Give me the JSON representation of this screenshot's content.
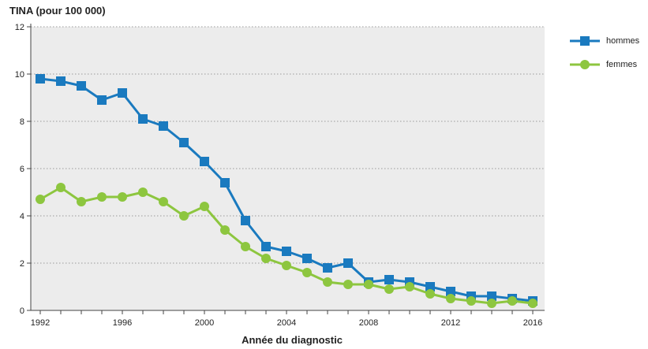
{
  "chart_data": {
    "type": "line",
    "ylabel": "TINA (pour 100 000)",
    "xlabel": "Année du diagnostic",
    "x": [
      1992,
      1993,
      1994,
      1995,
      1996,
      1997,
      1998,
      1999,
      2000,
      2001,
      2002,
      2003,
      2004,
      2005,
      2006,
      2007,
      2008,
      2009,
      2010,
      2011,
      2012,
      2013,
      2014,
      2015,
      2016
    ],
    "series": [
      {
        "name": "hommes",
        "color": "#1a7abf",
        "marker": "square",
        "values": [
          9.8,
          9.7,
          9.5,
          8.9,
          9.2,
          8.1,
          7.8,
          7.1,
          6.3,
          5.4,
          3.8,
          2.7,
          2.5,
          2.2,
          1.8,
          2.0,
          1.2,
          1.3,
          1.2,
          1.0,
          0.8,
          0.6,
          0.6,
          0.5,
          0.4
        ]
      },
      {
        "name": "femmes",
        "color": "#8dc63f",
        "marker": "circle",
        "values": [
          4.7,
          5.2,
          4.6,
          4.8,
          4.8,
          5.0,
          4.6,
          4.0,
          4.4,
          3.4,
          2.7,
          2.2,
          1.9,
          1.6,
          1.2,
          1.1,
          1.1,
          0.9,
          1.0,
          0.7,
          0.5,
          0.4,
          0.3,
          0.4,
          0.3
        ]
      }
    ],
    "ylim": [
      0,
      12
    ],
    "yticks": [
      0,
      2,
      4,
      6,
      8,
      10,
      12
    ],
    "xticks": [
      1992,
      1996,
      2000,
      2004,
      2008,
      2012,
      2016
    ],
    "xlim": [
      1992,
      2016
    ],
    "grid": "horizontal-dotted",
    "legend_position": "right"
  }
}
